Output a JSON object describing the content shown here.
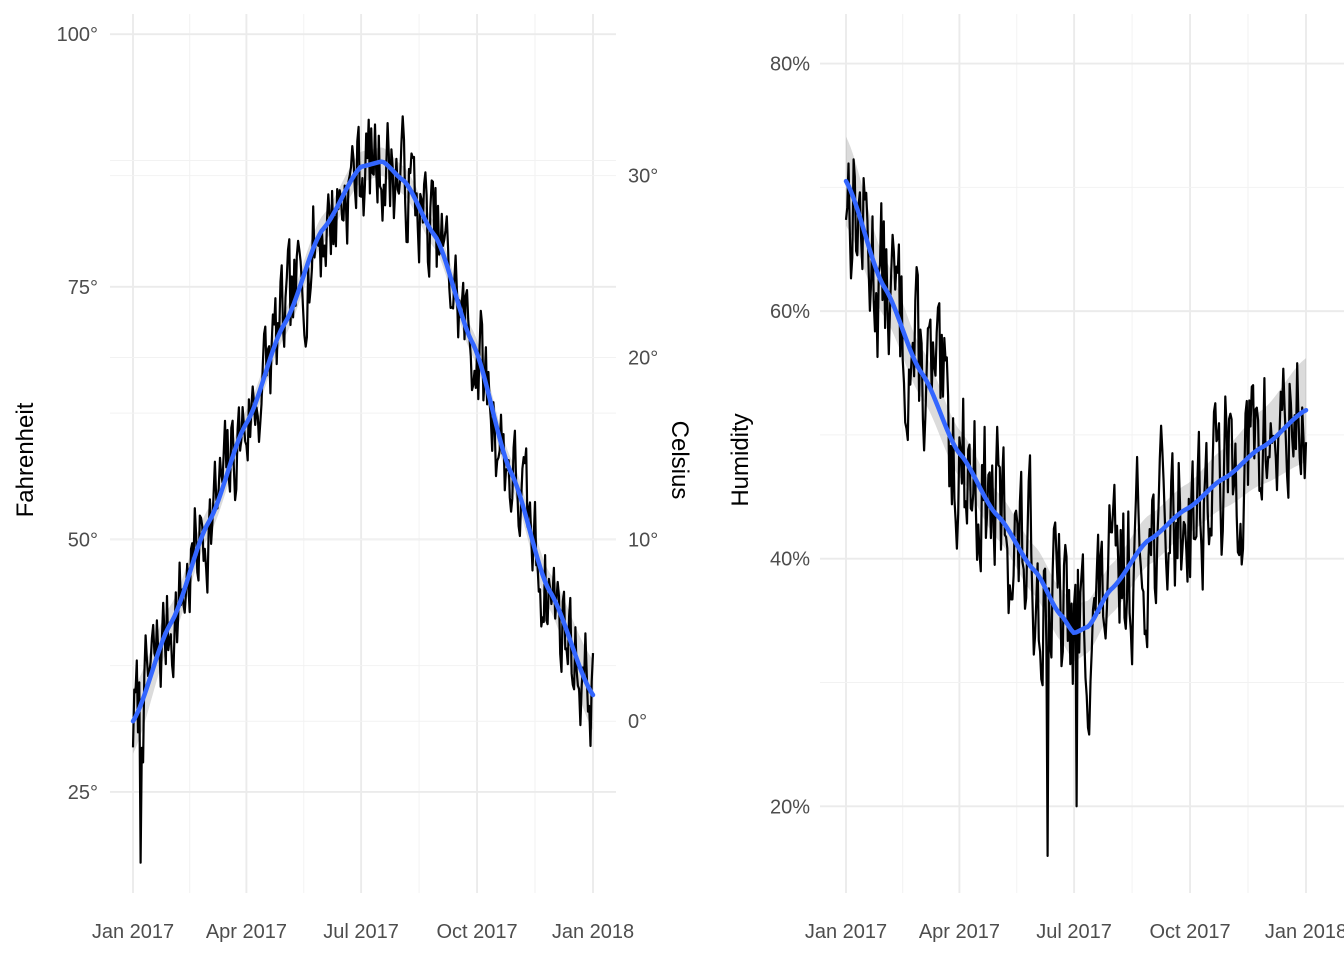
{
  "chart_data": [
    {
      "type": "line",
      "id": "temperature",
      "ylabel": "Fahrenheit",
      "y2label": "Celsius",
      "x_ticks": [
        "Jan 2017",
        "Apr 2017",
        "Jul 2017",
        "Oct 2017",
        "Jan 2018"
      ],
      "x_tick_values": [
        0,
        90,
        181,
        273,
        365
      ],
      "x_range": [
        0,
        365
      ],
      "ylim": [
        15,
        102
      ],
      "y_ticks": [
        25,
        50,
        75,
        100
      ],
      "y_tick_labels": [
        "25°",
        "50°",
        "75°",
        "100°"
      ],
      "y2_ticks": [
        0,
        10,
        20,
        30
      ],
      "y2_tick_labels": [
        "0°",
        "10°",
        "20°",
        "30°"
      ],
      "grid": true,
      "colors": {
        "series": "#000000",
        "smooth": "#3366ff",
        "band": "#999999"
      },
      "smooth_anchors": {
        "x": [
          0,
          30,
          60,
          90,
          120,
          150,
          181,
          198,
          215,
          240,
          270,
          300,
          330,
          365
        ],
        "y": [
          32.0,
          41.7,
          51.7,
          61.5,
          71.3,
          80.6,
          86.9,
          87.4,
          85.5,
          80.0,
          69.3,
          56.6,
          45.0,
          34.6
        ],
        "band_halfwidth": [
          3.2,
          1.8,
          1.4,
          1.3,
          1.3,
          1.4,
          1.5,
          1.4,
          1.4,
          1.3,
          1.3,
          1.4,
          1.8,
          3.5
        ]
      },
      "noise": {
        "amplitude": 9,
        "seed": 7,
        "low_points": [
          {
            "x": 6,
            "y": 18
          },
          {
            "x": 235,
            "y": 76
          }
        ]
      }
    },
    {
      "type": "line",
      "id": "humidity",
      "ylabel": "Humidity",
      "x_ticks": [
        "Jan 2017",
        "Apr 2017",
        "Jul 2017",
        "Oct 2017",
        "Jan 2018"
      ],
      "x_tick_values": [
        0,
        90,
        181,
        273,
        365
      ],
      "x_range": [
        0,
        365
      ],
      "ylim": [
        13,
        84
      ],
      "y_ticks": [
        20,
        40,
        60,
        80
      ],
      "y_tick_labels": [
        "20%",
        "40%",
        "60%",
        "80%"
      ],
      "grid": true,
      "colors": {
        "series": "#000000",
        "smooth": "#3366ff",
        "band": "#999999"
      },
      "smooth_anchors": {
        "x": [
          0,
          30,
          60,
          90,
          120,
          150,
          170,
          181,
          192,
          210,
          240,
          270,
          300,
          330,
          365
        ],
        "y": [
          70.5,
          62.0,
          55.0,
          48.5,
          43.5,
          39.0,
          35.5,
          34.0,
          34.5,
          37.5,
          41.5,
          44.0,
          46.5,
          49.0,
          52.0
        ],
        "band_halfwidth": [
          3.6,
          2.4,
          2.0,
          1.9,
          1.9,
          2.0,
          2.1,
          2.3,
          2.1,
          2.0,
          2.0,
          2.0,
          2.4,
          3.0,
          4.2
        ]
      },
      "noise": {
        "amplitude": 11,
        "seed": 13,
        "low_points": [
          {
            "x": 160,
            "y": 16
          },
          {
            "x": 183,
            "y": 20
          }
        ]
      }
    }
  ]
}
